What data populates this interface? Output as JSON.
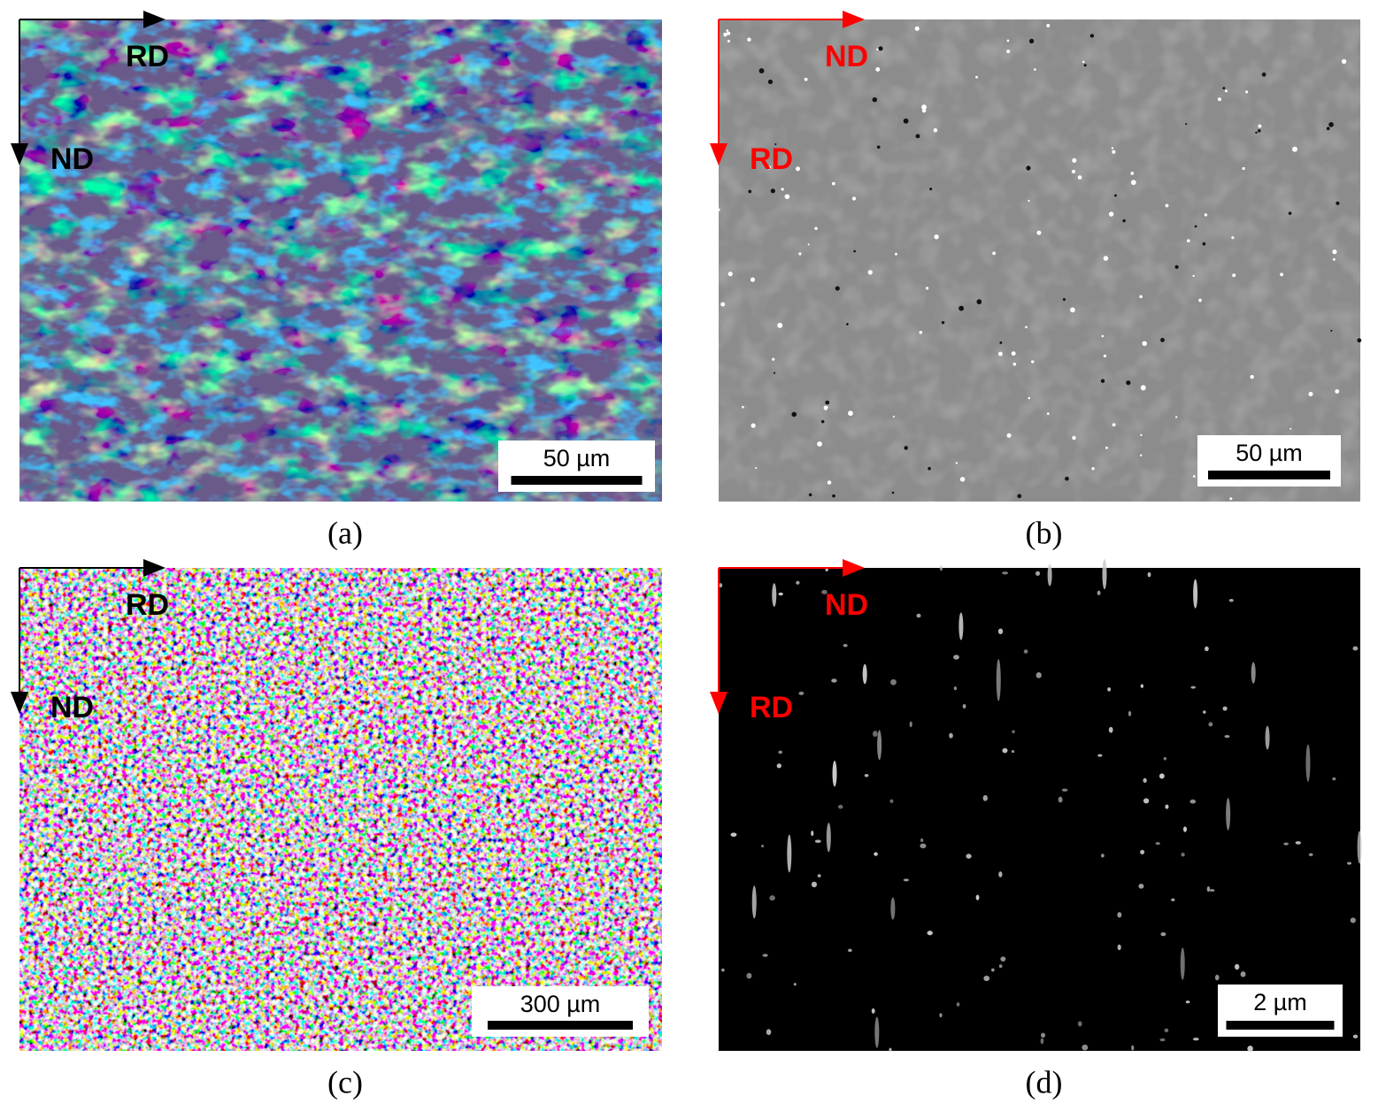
{
  "panels": [
    {
      "label": "(a)",
      "axis_horizontal": "RD",
      "axis_vertical": "ND",
      "scale_bar": "50 µm"
    },
    {
      "label": "(b)",
      "axis_horizontal": "ND",
      "axis_vertical": "RD",
      "scale_bar": "50 µm"
    },
    {
      "label": "(c)",
      "axis_horizontal": "RD",
      "axis_vertical": "ND",
      "scale_bar": "300 µm"
    },
    {
      "label": "(d)",
      "axis_horizontal": "ND",
      "axis_vertical": "RD",
      "scale_bar": "2 µm"
    }
  ]
}
